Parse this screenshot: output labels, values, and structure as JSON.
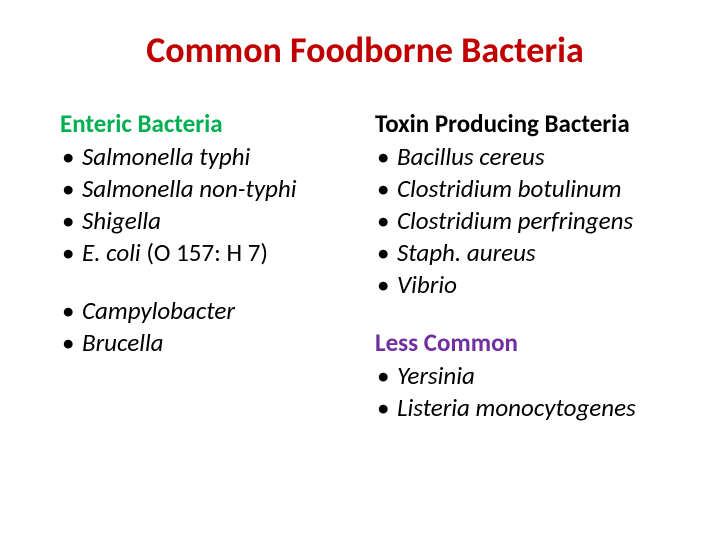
{
  "title": {
    "text": "Common Foodborne Bacteria",
    "color": "#c00000",
    "fontsize": 36
  },
  "body_fontsize": 25,
  "text_color": "#000000",
  "left": {
    "section1": {
      "heading": "Enteric Bacteria",
      "heading_color": "#00b050",
      "items": [
        {
          "text": "Salmonella typhi",
          "italic": true
        },
        {
          "text": "Salmonella non-typhi",
          "italic": true
        },
        {
          "text": "Shigella",
          "italic": true
        },
        {
          "text": "E. coli (O157: H7)",
          "italic": false,
          "prefix_italic": "E. coli ",
          "suffix": "(O 157: H 7)"
        }
      ]
    },
    "section2": {
      "items": [
        {
          "text": "Campylobacter",
          "italic": true
        },
        {
          "text": "Brucella",
          "italic": true
        }
      ]
    }
  },
  "right": {
    "section1": {
      "heading": "Toxin Producing Bacteria",
      "heading_color": "#000000",
      "items": [
        {
          "text": "Bacillus cereus",
          "italic": true
        },
        {
          "text": "Clostridium botulinum",
          "italic": true
        },
        {
          "text": "Clostridium perfringens",
          "italic": true
        },
        {
          "text": "Staph. aureus",
          "italic": true
        },
        {
          "text": "Vibrio",
          "italic": true
        }
      ]
    },
    "section2": {
      "heading": "Less Common",
      "heading_color": "#7030a0",
      "items": [
        {
          "text": "Yersinia",
          "italic": true
        },
        {
          "text": "Listeria monocytogenes",
          "italic": true
        }
      ]
    }
  }
}
